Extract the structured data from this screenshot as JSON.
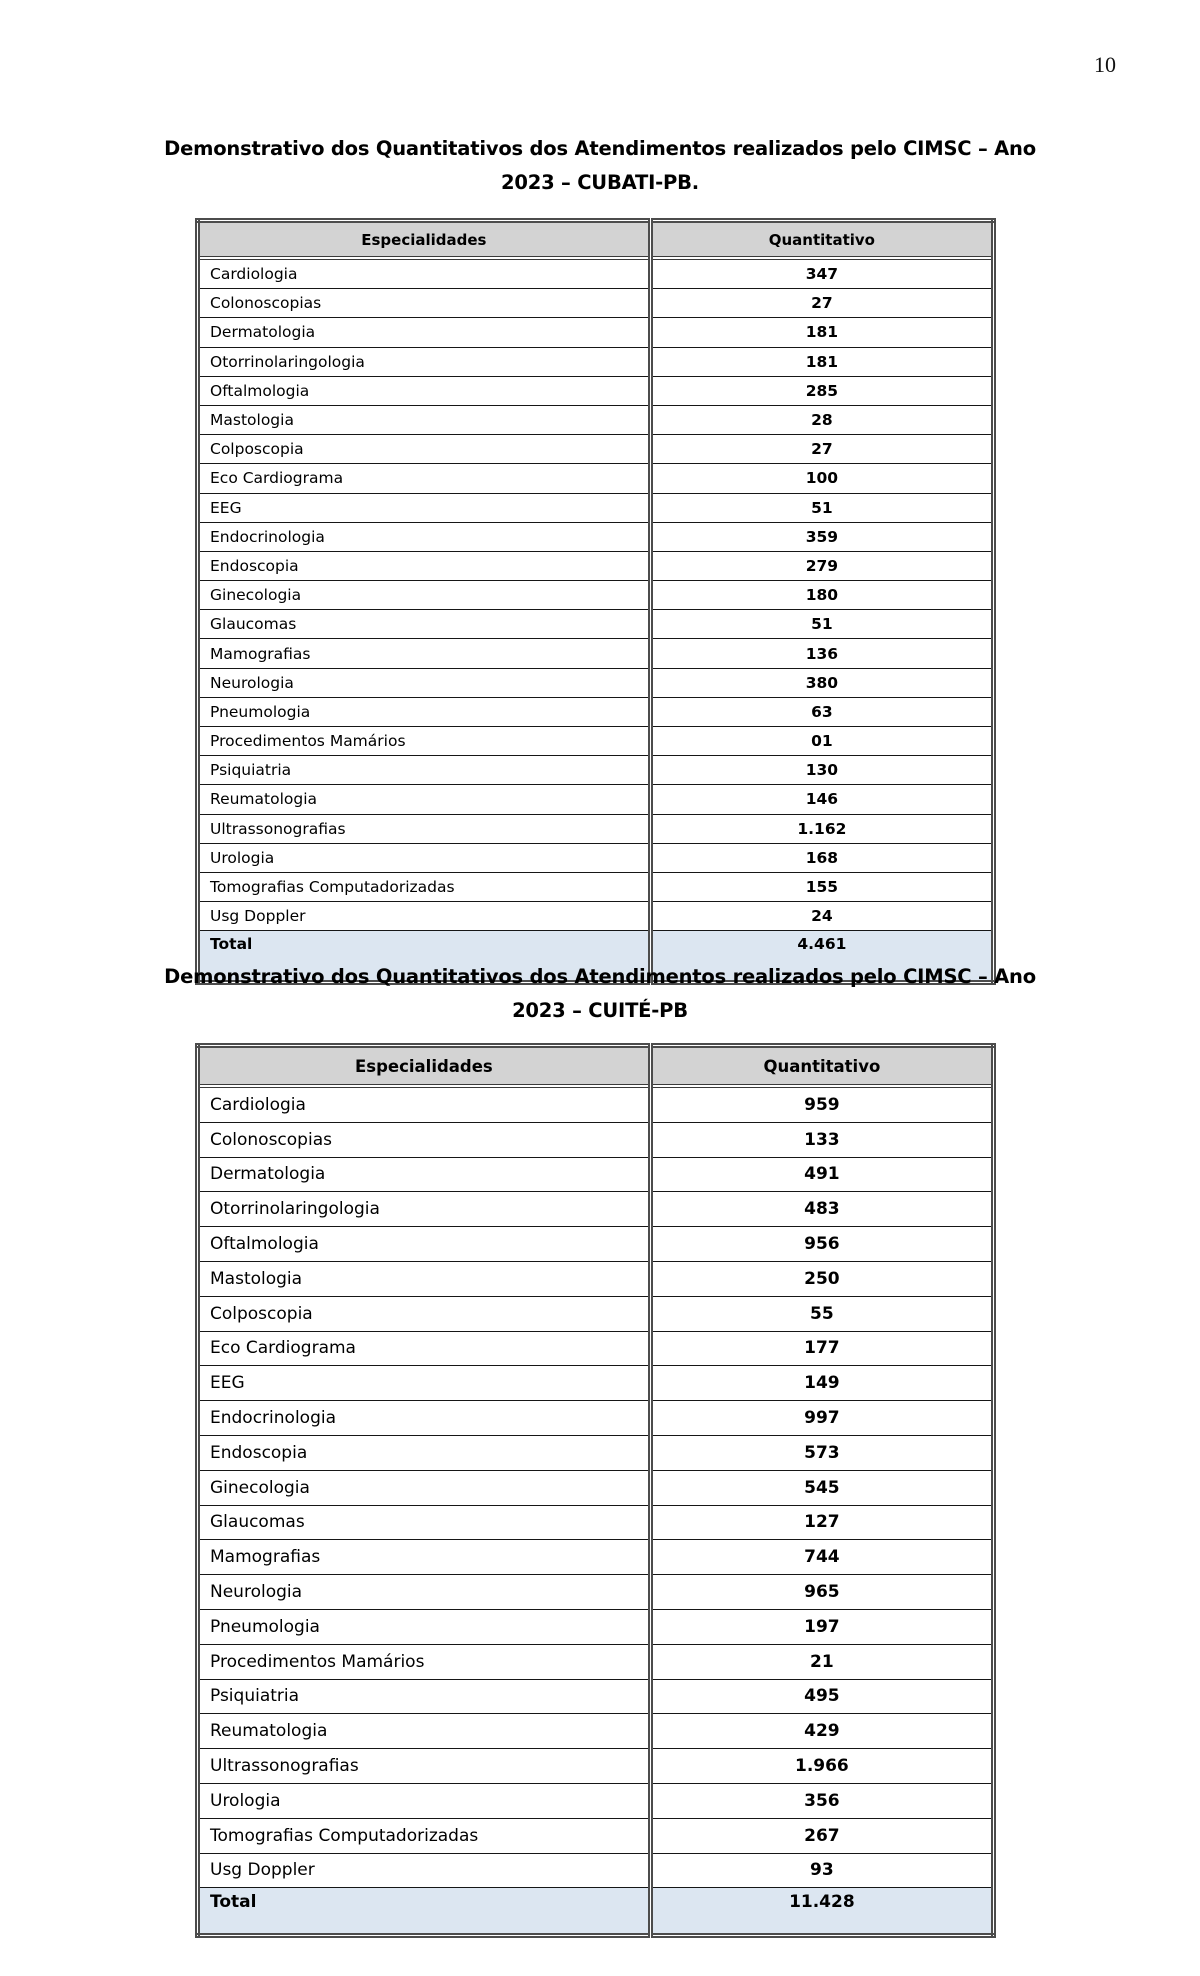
{
  "page": {
    "number": "10"
  },
  "colors": {
    "header_bg": "#d3d3d3",
    "total_bg": "#dce6f1",
    "border": "#4c4c4c"
  },
  "tables": [
    {
      "id": "cubati",
      "title_line1": "Demonstrativo dos Quantitativos dos Atendimentos realizados pelo CIMSC – Ano",
      "title_line2": "2023 – CUBATI-PB.",
      "columns": [
        "Especialidades",
        "Quantitativo"
      ],
      "rows": [
        [
          "Cardiologia",
          "347"
        ],
        [
          "Colonoscopias",
          "27"
        ],
        [
          "Dermatologia",
          "181"
        ],
        [
          "Otorrinolaringologia",
          "181"
        ],
        [
          "Oftalmologia",
          "285"
        ],
        [
          "Mastologia",
          "28"
        ],
        [
          "Colposcopia",
          "27"
        ],
        [
          "Eco Cardiograma",
          "100"
        ],
        [
          "EEG",
          "51"
        ],
        [
          "Endocrinologia",
          "359"
        ],
        [
          "Endoscopia",
          "279"
        ],
        [
          "Ginecologia",
          "180"
        ],
        [
          "Glaucomas",
          "51"
        ],
        [
          "Mamografias",
          "136"
        ],
        [
          "Neurologia",
          "380"
        ],
        [
          "Pneumologia",
          "63"
        ],
        [
          "Procedimentos Mamários",
          "01"
        ],
        [
          "Psiquiatria",
          "130"
        ],
        [
          "Reumatologia",
          "146"
        ],
        [
          "Ultrassonografias",
          "1.162"
        ],
        [
          "Urologia",
          "168"
        ],
        [
          "Tomografias Computadorizadas",
          "155"
        ],
        [
          "Usg Doppler",
          "24"
        ]
      ],
      "total": [
        "Total",
        "4.461"
      ]
    },
    {
      "id": "cuite",
      "title_line1": "Demonstrativo dos Quantitativos dos Atendimentos realizados pelo CIMSC – Ano",
      "title_line2": "2023 – CUITÉ-PB",
      "columns": [
        "Especialidades",
        "Quantitativo"
      ],
      "rows": [
        [
          "Cardiologia",
          "959"
        ],
        [
          "Colonoscopias",
          "133"
        ],
        [
          "Dermatologia",
          "491"
        ],
        [
          "Otorrinolaringologia",
          "483"
        ],
        [
          "Oftalmologia",
          "956"
        ],
        [
          "Mastologia",
          "250"
        ],
        [
          "Colposcopia",
          "55"
        ],
        [
          "Eco Cardiograma",
          "177"
        ],
        [
          "EEG",
          "149"
        ],
        [
          "Endocrinologia",
          "997"
        ],
        [
          "Endoscopia",
          "573"
        ],
        [
          "Ginecologia",
          "545"
        ],
        [
          "Glaucomas",
          "127"
        ],
        [
          "Mamografias",
          "744"
        ],
        [
          "Neurologia",
          "965"
        ],
        [
          "Pneumologia",
          "197"
        ],
        [
          "Procedimentos Mamários",
          "21"
        ],
        [
          "Psiquiatria",
          "495"
        ],
        [
          "Reumatologia",
          "429"
        ],
        [
          "Ultrassonografias",
          "1.966"
        ],
        [
          "Urologia",
          "356"
        ],
        [
          "Tomografias Computadorizadas",
          "267"
        ],
        [
          "Usg Doppler",
          "93"
        ]
      ],
      "total": [
        "Total",
        "11.428"
      ]
    }
  ]
}
